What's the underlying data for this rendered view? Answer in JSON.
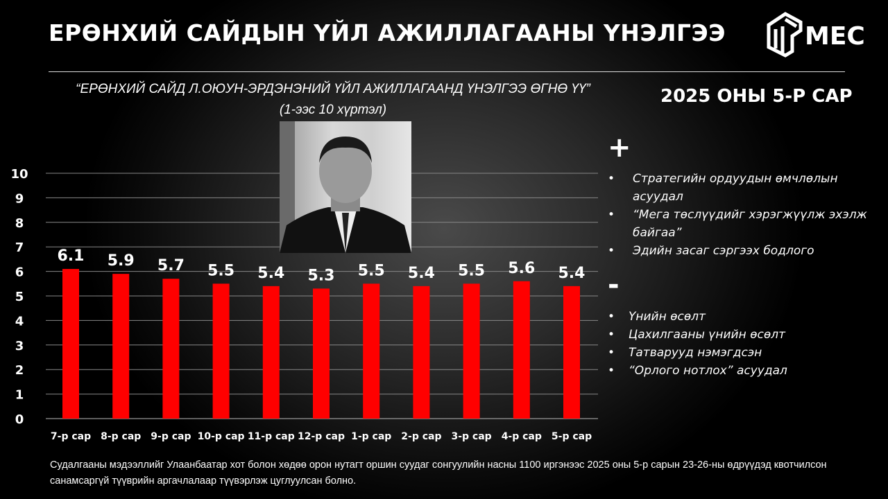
{
  "header": {
    "title": "ЕРӨНХИЙ САЙДЫН ҮЙЛ АЖИЛЛАГААНЫ ҮНЭЛГЭЭ",
    "logo_text": "MEC",
    "period": "2025 ОНЫ 5-Р САР"
  },
  "question": {
    "line1": "“ЕРӨНХИЙ САЙД Л.ОЮУН-ЭРДЭНЭНИЙ ҮЙЛ АЖИЛЛАГААНД ҮНЭЛГЭЭ ӨГНӨ ҮҮ”",
    "line2": "(1-ээс 10 хүртэл)"
  },
  "positives": {
    "symbol": "+",
    "items": [
      "Стратегийн ордуудын өмчлөлын асуудал",
      "“Мега төслүүдийг хэрэгжүүлж эхэлж байгаа”",
      "Эдийн засаг сэргээх бодлого"
    ]
  },
  "negatives": {
    "symbol": "-",
    "items": [
      "Үнийн өсөлт",
      "Цахилгааны үнийн өсөлт",
      "Татварууд нэмэгдсэн",
      "“Орлого нотлох” асуудал"
    ]
  },
  "footer": {
    "note": "Судалгааны мэдээллийг Улаанбаатар хот болон хөдөө орон нутагт оршин суудаг сонгуулийн насны 1100 иргэнээс 2025 оны 5-р сарын 23-26-ны өдрүүдэд квотчилсон санамсаргүй түүврийн аргачлалаар түүвэрлэж цуглуулсан болно."
  },
  "chart_data": {
    "type": "bar",
    "categories": [
      "7-р сар",
      "8-р сар",
      "9-р сар",
      "10-р сар",
      "11-р сар",
      "12-р сар",
      "1-р сар",
      "2-р сар",
      "3-р сар",
      "4-р сар",
      "5-р сар"
    ],
    "values": [
      6.1,
      5.9,
      5.7,
      5.5,
      5.4,
      5.3,
      5.5,
      5.4,
      5.5,
      5.6,
      5.4
    ],
    "ylim": [
      0,
      10
    ],
    "yticks": [
      0,
      1,
      2,
      3,
      4,
      5,
      6,
      7,
      8,
      9,
      10
    ],
    "grid": true,
    "bar_color": "#ff0000",
    "data_labels": true
  }
}
